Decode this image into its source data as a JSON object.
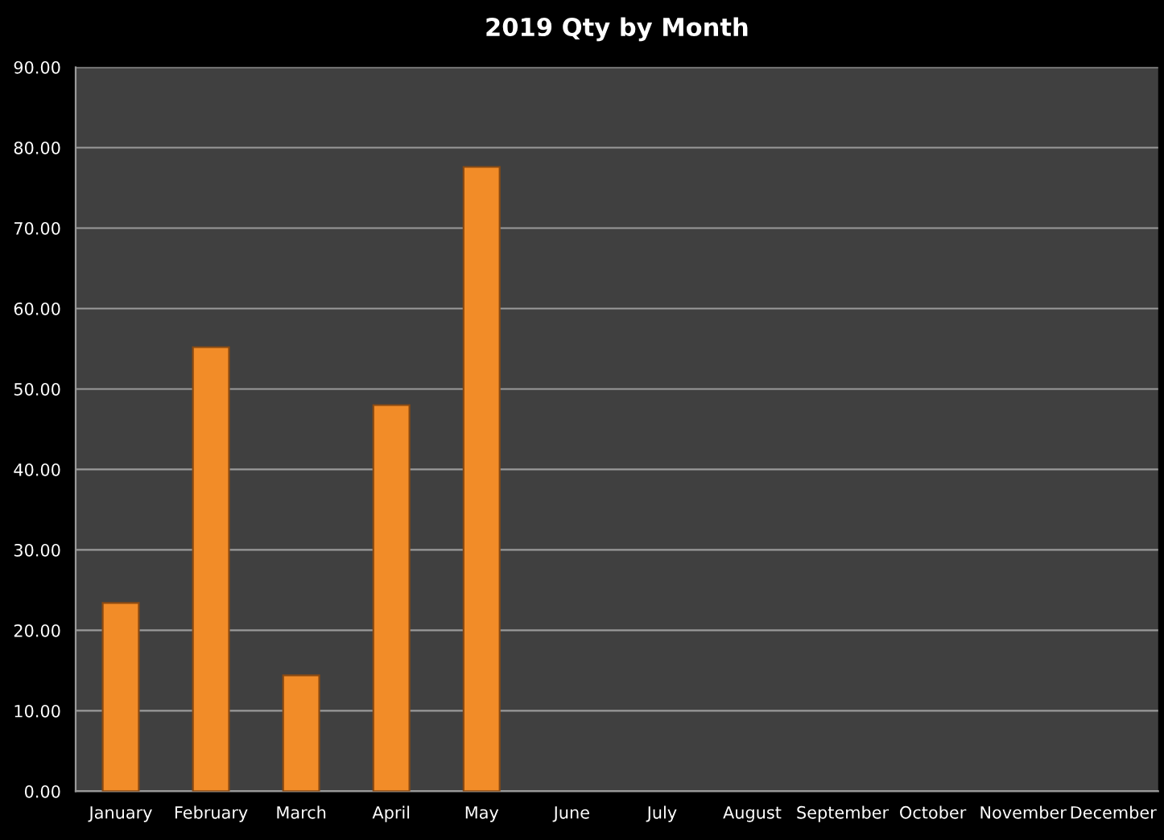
{
  "chart_data": {
    "type": "bar",
    "title": "2019 Qty by Month",
    "categories": [
      "January",
      "February",
      "March",
      "April",
      "May",
      "June",
      "July",
      "August",
      "September",
      "October",
      "November",
      "December"
    ],
    "values": [
      23.4,
      55.2,
      14.4,
      48.0,
      77.6,
      null,
      null,
      null,
      null,
      null,
      null,
      null
    ],
    "color": "#f28c28",
    "ylim": [
      0,
      90
    ],
    "yticks": [
      {
        "value": 0,
        "label": "0.00"
      },
      {
        "value": 10,
        "label": "10.00"
      },
      {
        "value": 20,
        "label": "20.00"
      },
      {
        "value": 30,
        "label": "30.00"
      },
      {
        "value": 40,
        "label": "40.00"
      },
      {
        "value": 50,
        "label": "50.00"
      },
      {
        "value": 60,
        "label": "60.00"
      },
      {
        "value": 70,
        "label": "70.00"
      },
      {
        "value": 80,
        "label": "80.00"
      },
      {
        "value": 90,
        "label": "90.00"
      }
    ],
    "grid": "y",
    "legend": false
  }
}
